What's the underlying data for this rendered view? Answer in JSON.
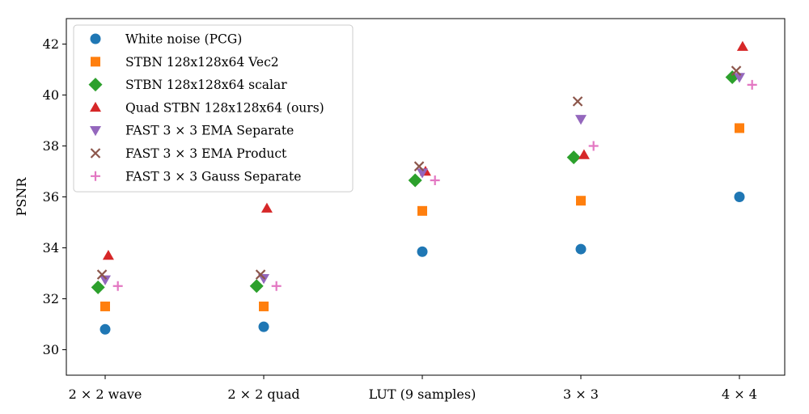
{
  "chart_data": {
    "type": "scatter",
    "title": "",
    "xlabel": "",
    "ylabel": "PSNR",
    "ylim": [
      29,
      43
    ],
    "yticks": [
      30,
      32,
      34,
      36,
      38,
      40,
      42
    ],
    "grid": false,
    "legend_location": "top-left",
    "categories": [
      "2 × 2 wave",
      "2 × 2 quad",
      "LUT (9 samples)",
      "3 × 3",
      "4 × 4"
    ],
    "series": [
      {
        "name": "White noise (PCG)",
        "marker": "circle",
        "color": "#1f77b4",
        "offset": 0.0,
        "values": [
          30.8,
          30.9,
          33.85,
          33.95,
          36.0
        ]
      },
      {
        "name": "STBN 128x128x64 Vec2",
        "marker": "square",
        "color": "#ff7f0e",
        "offset": 0.0,
        "values": [
          31.7,
          31.7,
          35.45,
          35.85,
          38.7
        ]
      },
      {
        "name": "STBN 128x128x64 scalar",
        "marker": "diamond",
        "color": "#2ca02c",
        "offset": -0.045,
        "values": [
          32.45,
          32.5,
          36.65,
          37.55,
          40.7
        ]
      },
      {
        "name": "Quad STBN 128x128x64 (ours)",
        "marker": "triangle-up",
        "color": "#d62728",
        "offset": 0.02,
        "values": [
          33.7,
          35.55,
          37.0,
          37.65,
          41.9
        ]
      },
      {
        "name": "FAST 3 × 3 EMA Separate",
        "marker": "triangle-down",
        "color": "#9467bd",
        "offset": 0.0,
        "values": [
          32.75,
          32.8,
          36.95,
          39.05,
          40.7
        ]
      },
      {
        "name": "FAST 3 × 3 EMA Product",
        "marker": "x",
        "color": "#8c564b",
        "offset": -0.02,
        "values": [
          32.95,
          32.95,
          37.2,
          39.75,
          40.95
        ]
      },
      {
        "name": "FAST 3 × 3 Gauss Separate",
        "marker": "plus",
        "color": "#e377c2",
        "offset": 0.08,
        "values": [
          32.5,
          32.5,
          36.65,
          38.0,
          40.4
        ]
      }
    ]
  }
}
